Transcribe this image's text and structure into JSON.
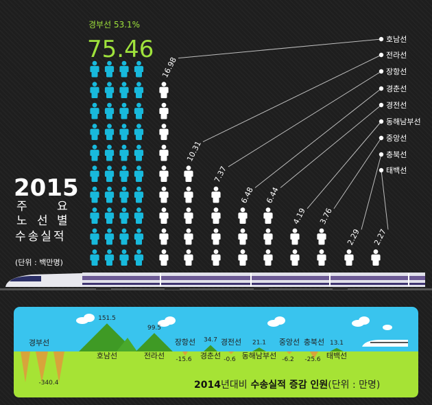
{
  "headline": {
    "route": "경부선",
    "share": "53.1%",
    "value": "75.46"
  },
  "title": {
    "year": "2015",
    "line1": [
      "주",
      "요"
    ],
    "line2": [
      "노",
      "선",
      "별"
    ],
    "line3": "수송실적",
    "unit": "(단위 : 백만명)"
  },
  "colors": {
    "accent_green": "#9fe23c",
    "accent_cyan": "#18b9dc",
    "person_white": "#ffffff",
    "line_gray": "#bfbfbf",
    "sky": "#39c4ee",
    "grass": "#a6e335",
    "mountain": "#3f9a25",
    "valley": "#d8a43b"
  },
  "chart_data": [
    {
      "type": "bar",
      "title": "2015 주요 노선별 수송실적",
      "unit": "백만명",
      "series": [
        {
          "categories": [
            "경부선",
            "호남선",
            "전라선",
            "장항선",
            "경춘선",
            "경전선",
            "동해남부선",
            "중앙선",
            "충북선",
            "태백선"
          ],
          "values": [
            75.46,
            16.98,
            10.31,
            7.37,
            6.48,
            6.44,
            4.19,
            3.76,
            2.29,
            2.27
          ],
          "labels": [
            "75.46",
            "16.98",
            "10.31",
            "7.37",
            "6.48",
            "6.44",
            "4.19",
            "3.76",
            "2.29",
            "2.27"
          ]
        }
      ]
    },
    {
      "type": "bar",
      "title": "2014년대비 수송실적 증감 인원",
      "unit": "만명",
      "categories": [
        "경부선",
        "호남선",
        "전라선",
        "장항선",
        "경춘선",
        "경전선",
        "동해남부선",
        "중앙선",
        "충북선",
        "태백선"
      ],
      "values": [
        -340.4,
        151.5,
        99.5,
        -15.6,
        34.7,
        -0.6,
        21.1,
        -6.2,
        -25.6,
        13.1
      ],
      "labels": [
        "-340.4",
        "151.5",
        "99.5",
        "-15.6",
        "34.7",
        "-0.6",
        "21.1",
        "-6.2",
        "-25.6",
        "13.1"
      ]
    }
  ],
  "bottom_title": {
    "part1": "2014",
    "part2": "년대비",
    "part3": "수송실적 증감 인원",
    "part4": "(단위 : 만명)"
  }
}
